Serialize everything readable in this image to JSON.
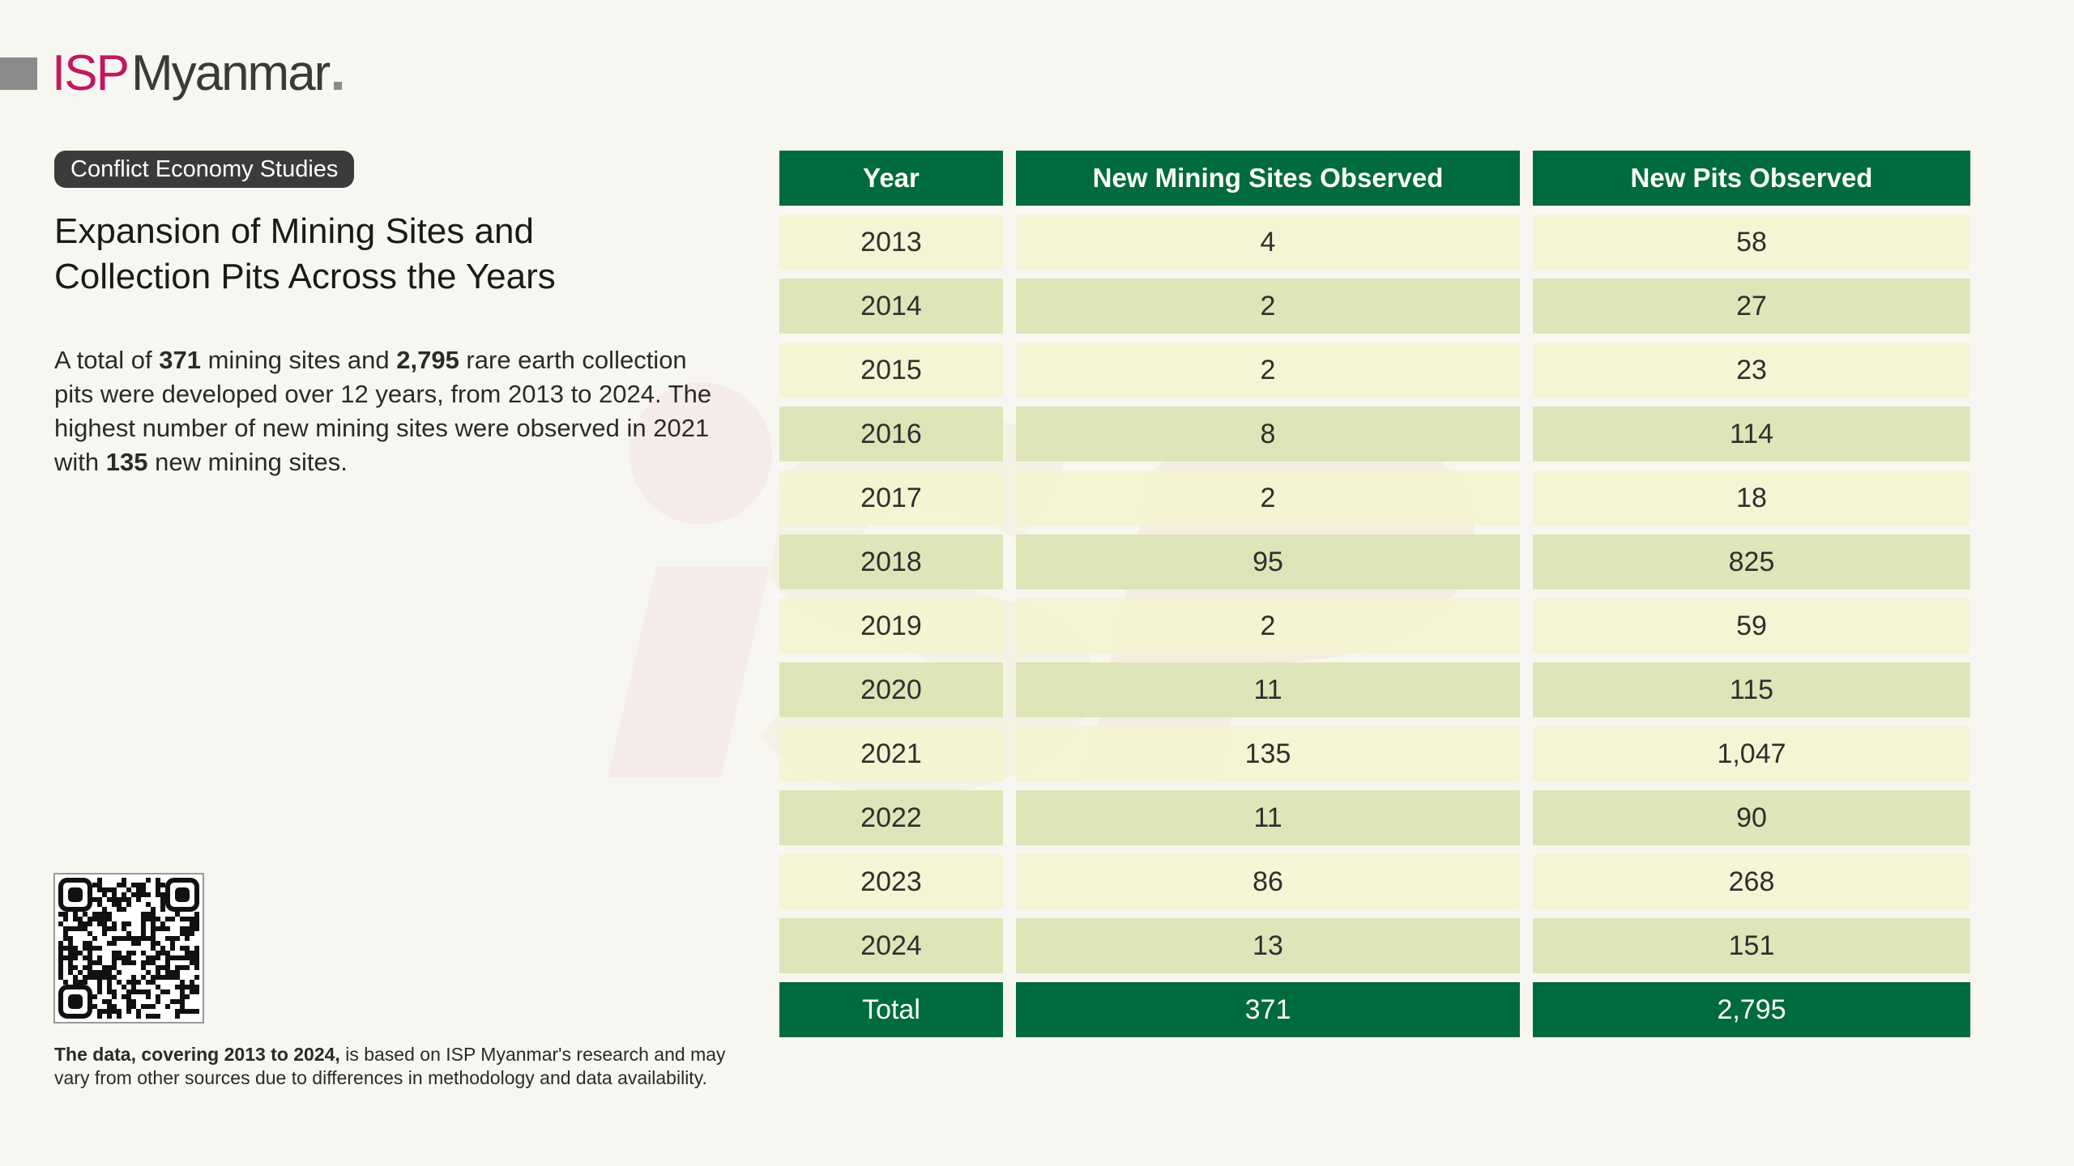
{
  "brand": {
    "logo_isp": "ISP",
    "logo_name": "Myanmar",
    "isp_color": "#c1185f"
  },
  "tag": "Conflict Economy Studies",
  "title_line1": "Expansion of Mining Sites and",
  "title_line2": "Collection Pits Across the Years",
  "body": {
    "p1": "A total of ",
    "sites_total": "371",
    "p2": " mining sites and ",
    "pits_total": "2,795",
    "p3": " rare earth collection pits were developed over 12 years, from 2013 to 2024. The highest number of new mining sites were observed in 2021 with ",
    "peak_sites": "135",
    "p4": " new mining sites."
  },
  "footnote": {
    "bold": "The data, covering 2013 to 2024,",
    "rest": " is based on ISP Myanmar's research and may vary from other sources due to differences in methodology and data availability."
  },
  "colors": {
    "header_green": "#006b3c",
    "row_light": "#f3f4d0",
    "row_dark": "#dae3b1"
  },
  "table": {
    "headers": [
      "Year",
      "New Mining Sites Observed",
      "New Pits Observed"
    ],
    "rows": [
      [
        "2013",
        "4",
        "58"
      ],
      [
        "2014",
        "2",
        "27"
      ],
      [
        "2015",
        "2",
        "23"
      ],
      [
        "2016",
        "8",
        "114"
      ],
      [
        "2017",
        "2",
        "18"
      ],
      [
        "2018",
        "95",
        "825"
      ],
      [
        "2019",
        "2",
        "59"
      ],
      [
        "2020",
        "11",
        "115"
      ],
      [
        "2021",
        "135",
        "1,047"
      ],
      [
        "2022",
        "11",
        "90"
      ],
      [
        "2023",
        "86",
        "268"
      ],
      [
        "2024",
        "13",
        "151"
      ]
    ],
    "total": [
      "Total",
      "371",
      "2,795"
    ]
  }
}
